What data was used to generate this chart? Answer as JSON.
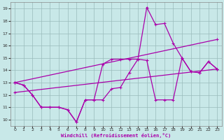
{
  "background_color": "#c8e8e8",
  "line_color": "#aa00aa",
  "grid_color": "#99bbbb",
  "xlabel": "Windchill (Refroidissement éolien,°C)",
  "xlim": [
    -0.5,
    23.5
  ],
  "ylim": [
    9.5,
    19.5
  ],
  "xticks": [
    0,
    1,
    2,
    3,
    4,
    5,
    6,
    7,
    8,
    9,
    10,
    11,
    12,
    13,
    14,
    15,
    16,
    17,
    18,
    19,
    20,
    21,
    22,
    23
  ],
  "yticks": [
    10,
    11,
    12,
    13,
    14,
    15,
    16,
    17,
    18,
    19
  ],
  "line_lower_x": [
    0,
    1,
    2,
    3,
    4,
    5,
    6,
    7,
    8,
    9,
    10,
    11,
    12,
    13,
    14,
    15,
    16,
    17,
    18,
    19,
    20,
    21,
    22,
    23
  ],
  "line_lower_y": [
    13.0,
    12.8,
    12.0,
    11.0,
    11.0,
    11.0,
    10.8,
    9.8,
    11.6,
    11.6,
    11.6,
    12.5,
    12.6,
    13.8,
    14.9,
    14.8,
    11.6,
    11.6,
    11.6,
    15.0,
    13.9,
    13.8,
    14.7,
    14.1
  ],
  "line_upper_x": [
    0,
    1,
    2,
    3,
    4,
    5,
    6,
    7,
    8,
    9,
    10,
    11,
    12,
    13,
    14,
    15,
    16,
    17,
    18,
    19,
    20,
    21,
    22,
    23
  ],
  "line_upper_y": [
    13.0,
    12.8,
    12.0,
    11.0,
    11.0,
    11.0,
    10.8,
    9.8,
    11.6,
    11.6,
    14.5,
    14.9,
    14.9,
    14.9,
    14.9,
    19.1,
    17.7,
    17.8,
    16.2,
    15.0,
    13.9,
    13.8,
    14.7,
    14.1
  ],
  "trend1_x": [
    0,
    23
  ],
  "trend1_y": [
    13.0,
    16.5
  ],
  "trend2_x": [
    0,
    23
  ],
  "trend2_y": [
    12.2,
    14.1
  ]
}
